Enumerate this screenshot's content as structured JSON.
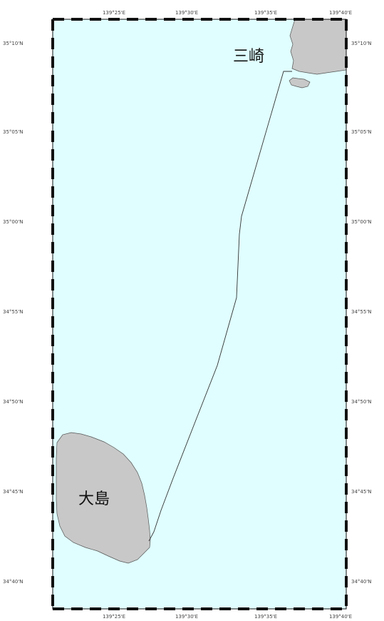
{
  "map": {
    "colors": {
      "sea": "#e0feff",
      "land": "#c8c8c8",
      "coastline": "#555555",
      "route": "#333333",
      "frame_dark": "#111111",
      "frame_light": "#ffffff"
    },
    "lon_labels": [
      "139°25'E",
      "139°30'E",
      "139°35'E",
      "139°40'E"
    ],
    "lat_labels": [
      "35°10'N",
      "35°05'N",
      "35°00'N",
      "34°55'N",
      "34°50'N",
      "34°45'N",
      "34°40'N"
    ],
    "places": {
      "misaki": "三崎",
      "oshima": "大島"
    }
  }
}
